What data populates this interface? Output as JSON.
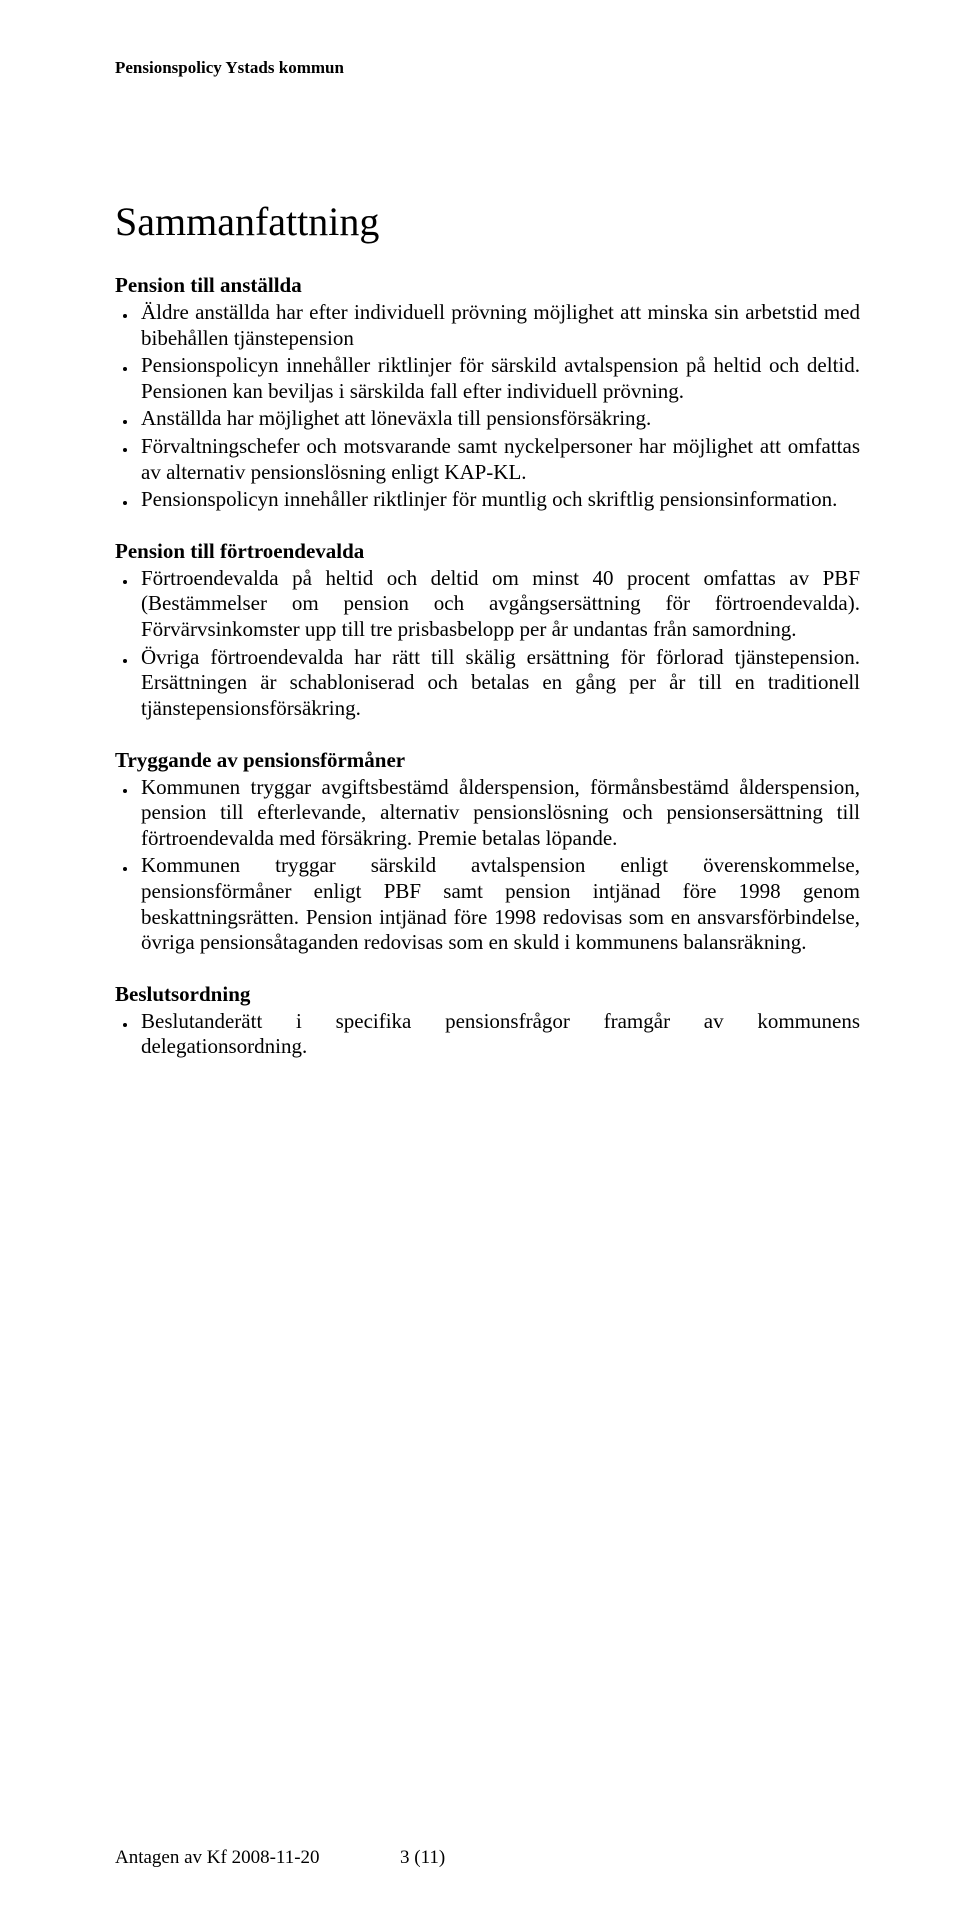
{
  "header": {
    "running_title": "Pensionspolicy Ystads kommun"
  },
  "title": "Sammanfattning",
  "sections": [
    {
      "heading": "Pension till anställda",
      "items": [
        "Äldre anställda har efter individuell prövning möjlighet att minska sin arbetstid med bibehållen tjänstepension",
        "Pensionspolicyn innehåller riktlinjer för särskild avtalspension på heltid och deltid. Pensionen kan beviljas i särskilda fall efter individuell prövning.",
        "Anställda har möjlighet att löneväxla till pensionsförsäkring.",
        "Förvaltningschefer och motsvarande samt nyckelpersoner har möjlighet att omfattas av alternativ pensionslösning enligt KAP-KL.",
        "Pensionspolicyn innehåller riktlinjer för muntlig och skriftlig pensionsinformation."
      ]
    },
    {
      "heading": "Pension till förtroendevalda",
      "items": [
        "Förtroendevalda på heltid och deltid om minst 40 procent omfattas av PBF (Bestämmelser om pension och avgångsersättning för förtroendevalda). Förvärvsinkomster upp till tre prisbasbelopp per år undantas från samordning.",
        "Övriga förtroendevalda har rätt till skälig ersättning för förlorad tjänstepension. Ersättningen är schabloniserad och betalas en gång per år till en traditionell tjänstepensionsförsäkring."
      ]
    },
    {
      "heading": "Tryggande av pensionsförmåner",
      "items": [
        "Kommunen tryggar avgiftsbestämd ålderspension, förmånsbestämd ålderspension, pension till efterlevande, alternativ pensionslösning och pensionsersättning till förtroendevalda med försäkring. Premie betalas löpande.",
        "Kommunen tryggar särskild avtalspension enligt överenskommelse, pensionsförmåner enligt PBF samt pension intjänad före 1998 genom beskattningsrätten. Pension intjänad före 1998 redovisas som en ansvarsförbindelse, övriga pensionsåtaganden redovisas som en skuld i kommunens balansräkning."
      ]
    },
    {
      "heading": "Beslutsordning",
      "items": [
        "Beslutanderätt i specifika pensionsfrågor framgår av kommunens delegationsordning."
      ]
    }
  ],
  "footer": {
    "adopted": "Antagen av Kf 2008-11-20",
    "page": "3 (11)"
  }
}
